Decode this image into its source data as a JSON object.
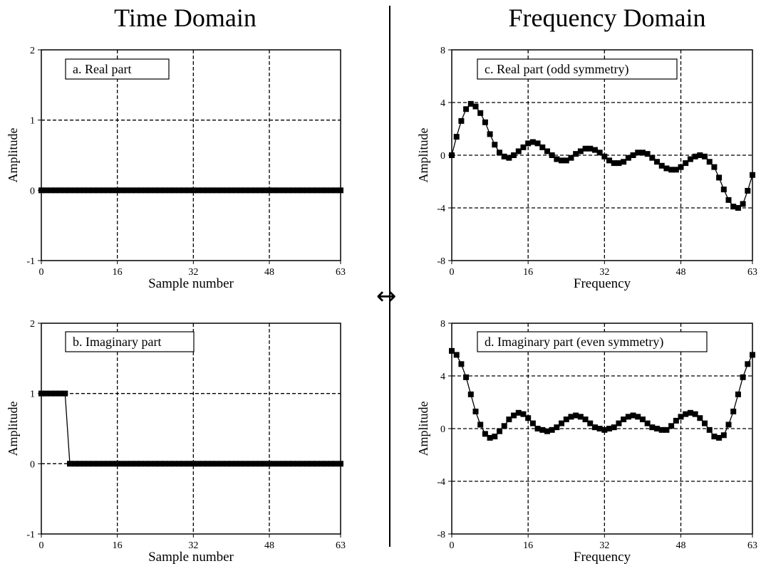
{
  "headers": {
    "left": "Time Domain",
    "right": "Frequency Domain"
  },
  "icons": {
    "transform": "double-headed-arrow"
  },
  "chart_data": [
    {
      "id": "a",
      "type": "line",
      "title": "a.  Real part",
      "xlabel": "Sample number",
      "ylabel": "Amplitude",
      "xlim": [
        0,
        63
      ],
      "ylim": [
        -1,
        2
      ],
      "xticks": [
        0,
        16,
        32,
        48,
        63
      ],
      "yticks": [
        -1,
        0,
        1,
        2
      ],
      "grid": true,
      "x": [
        0,
        1,
        2,
        3,
        4,
        5,
        6,
        7,
        8,
        9,
        10,
        11,
        12,
        13,
        14,
        15,
        16,
        17,
        18,
        19,
        20,
        21,
        22,
        23,
        24,
        25,
        26,
        27,
        28,
        29,
        30,
        31,
        32,
        33,
        34,
        35,
        36,
        37,
        38,
        39,
        40,
        41,
        42,
        43,
        44,
        45,
        46,
        47,
        48,
        49,
        50,
        51,
        52,
        53,
        54,
        55,
        56,
        57,
        58,
        59,
        60,
        61,
        62,
        63
      ],
      "y": [
        0,
        0,
        0,
        0,
        0,
        0,
        0,
        0,
        0,
        0,
        0,
        0,
        0,
        0,
        0,
        0,
        0,
        0,
        0,
        0,
        0,
        0,
        0,
        0,
        0,
        0,
        0,
        0,
        0,
        0,
        0,
        0,
        0,
        0,
        0,
        0,
        0,
        0,
        0,
        0,
        0,
        0,
        0,
        0,
        0,
        0,
        0,
        0,
        0,
        0,
        0,
        0,
        0,
        0,
        0,
        0,
        0,
        0,
        0,
        0,
        0,
        0,
        0,
        0
      ]
    },
    {
      "id": "b",
      "type": "line",
      "title": "b.  Imaginary part",
      "xlabel": "Sample number",
      "ylabel": "Amplitude",
      "xlim": [
        0,
        63
      ],
      "ylim": [
        -1,
        2
      ],
      "xticks": [
        0,
        16,
        32,
        48,
        63
      ],
      "yticks": [
        -1,
        0,
        1,
        2
      ],
      "grid": true,
      "x": [
        0,
        1,
        2,
        3,
        4,
        5,
        6,
        7,
        8,
        9,
        10,
        11,
        12,
        13,
        14,
        15,
        16,
        17,
        18,
        19,
        20,
        21,
        22,
        23,
        24,
        25,
        26,
        27,
        28,
        29,
        30,
        31,
        32,
        33,
        34,
        35,
        36,
        37,
        38,
        39,
        40,
        41,
        42,
        43,
        44,
        45,
        46,
        47,
        48,
        49,
        50,
        51,
        52,
        53,
        54,
        55,
        56,
        57,
        58,
        59,
        60,
        61,
        62,
        63
      ],
      "y": [
        1,
        1,
        1,
        1,
        1,
        1,
        0,
        0,
        0,
        0,
        0,
        0,
        0,
        0,
        0,
        0,
        0,
        0,
        0,
        0,
        0,
        0,
        0,
        0,
        0,
        0,
        0,
        0,
        0,
        0,
        0,
        0,
        0,
        0,
        0,
        0,
        0,
        0,
        0,
        0,
        0,
        0,
        0,
        0,
        0,
        0,
        0,
        0,
        0,
        0,
        0,
        0,
        0,
        0,
        0,
        0,
        0,
        0,
        0,
        0,
        0,
        0,
        0,
        0
      ]
    },
    {
      "id": "c",
      "type": "line",
      "title": "c.  Real part  (odd symmetry)",
      "xlabel": "Frequency",
      "ylabel": "Amplitude",
      "xlim": [
        0,
        63
      ],
      "ylim": [
        -8,
        8
      ],
      "xticks": [
        0,
        16,
        32,
        48,
        63
      ],
      "yticks": [
        -8,
        -4,
        0,
        4,
        8
      ],
      "grid": true,
      "x": [
        0,
        1,
        2,
        3,
        4,
        5,
        6,
        7,
        8,
        9,
        10,
        11,
        12,
        13,
        14,
        15,
        16,
        17,
        18,
        19,
        20,
        21,
        22,
        23,
        24,
        25,
        26,
        27,
        28,
        29,
        30,
        31,
        32,
        33,
        34,
        35,
        36,
        37,
        38,
        39,
        40,
        41,
        42,
        43,
        44,
        45,
        46,
        47,
        48,
        49,
        50,
        51,
        52,
        53,
        54,
        55,
        56,
        57,
        58,
        59,
        60,
        61,
        62,
        63
      ],
      "y": [
        0,
        1.4,
        2.6,
        3.5,
        3.9,
        3.7,
        3.2,
        2.5,
        1.6,
        0.8,
        0.2,
        -0.1,
        -0.2,
        0.0,
        0.3,
        0.6,
        0.9,
        1.0,
        0.9,
        0.6,
        0.3,
        0.0,
        -0.3,
        -0.4,
        -0.4,
        -0.2,
        0.1,
        0.3,
        0.5,
        0.5,
        0.4,
        0.2,
        -0.1,
        -0.4,
        -0.6,
        -0.6,
        -0.5,
        -0.2,
        0.0,
        0.2,
        0.2,
        0.1,
        -0.2,
        -0.5,
        -0.8,
        -1.0,
        -1.1,
        -1.1,
        -0.9,
        -0.6,
        -0.3,
        -0.1,
        0.0,
        -0.1,
        -0.5,
        -0.9,
        -1.7,
        -2.6,
        -3.4,
        -3.9,
        -4.0,
        -3.7,
        -2.7,
        -1.5
      ]
    },
    {
      "id": "d",
      "type": "line",
      "title": "d.  Imaginary part  (even symmetry)",
      "xlabel": "Frequency",
      "ylabel": "Amplitude",
      "xlim": [
        0,
        63
      ],
      "ylim": [
        -8,
        8
      ],
      "xticks": [
        0,
        16,
        32,
        48,
        63
      ],
      "yticks": [
        -8,
        -4,
        0,
        4,
        8
      ],
      "grid": true,
      "x": [
        0,
        1,
        2,
        3,
        4,
        5,
        6,
        7,
        8,
        9,
        10,
        11,
        12,
        13,
        14,
        15,
        16,
        17,
        18,
        19,
        20,
        21,
        22,
        23,
        24,
        25,
        26,
        27,
        28,
        29,
        30,
        31,
        32,
        33,
        34,
        35,
        36,
        37,
        38,
        39,
        40,
        41,
        42,
        43,
        44,
        45,
        46,
        47,
        48,
        49,
        50,
        51,
        52,
        53,
        54,
        55,
        56,
        57,
        58,
        59,
        60,
        61,
        62,
        63
      ],
      "y": [
        5.9,
        5.6,
        4.9,
        3.9,
        2.6,
        1.3,
        0.3,
        -0.4,
        -0.7,
        -0.6,
        -0.2,
        0.2,
        0.7,
        1.0,
        1.2,
        1.1,
        0.8,
        0.4,
        0.0,
        -0.1,
        -0.2,
        -0.1,
        0.1,
        0.4,
        0.7,
        0.9,
        1.0,
        0.9,
        0.7,
        0.4,
        0.1,
        0.0,
        -0.1,
        0.0,
        0.1,
        0.4,
        0.7,
        0.9,
        1.0,
        0.9,
        0.7,
        0.4,
        0.1,
        0.0,
        -0.1,
        -0.1,
        0.2,
        0.6,
        0.9,
        1.1,
        1.2,
        1.1,
        0.8,
        0.4,
        -0.1,
        -0.6,
        -0.7,
        -0.5,
        0.3,
        1.3,
        2.6,
        3.9,
        4.9,
        5.6
      ]
    }
  ]
}
